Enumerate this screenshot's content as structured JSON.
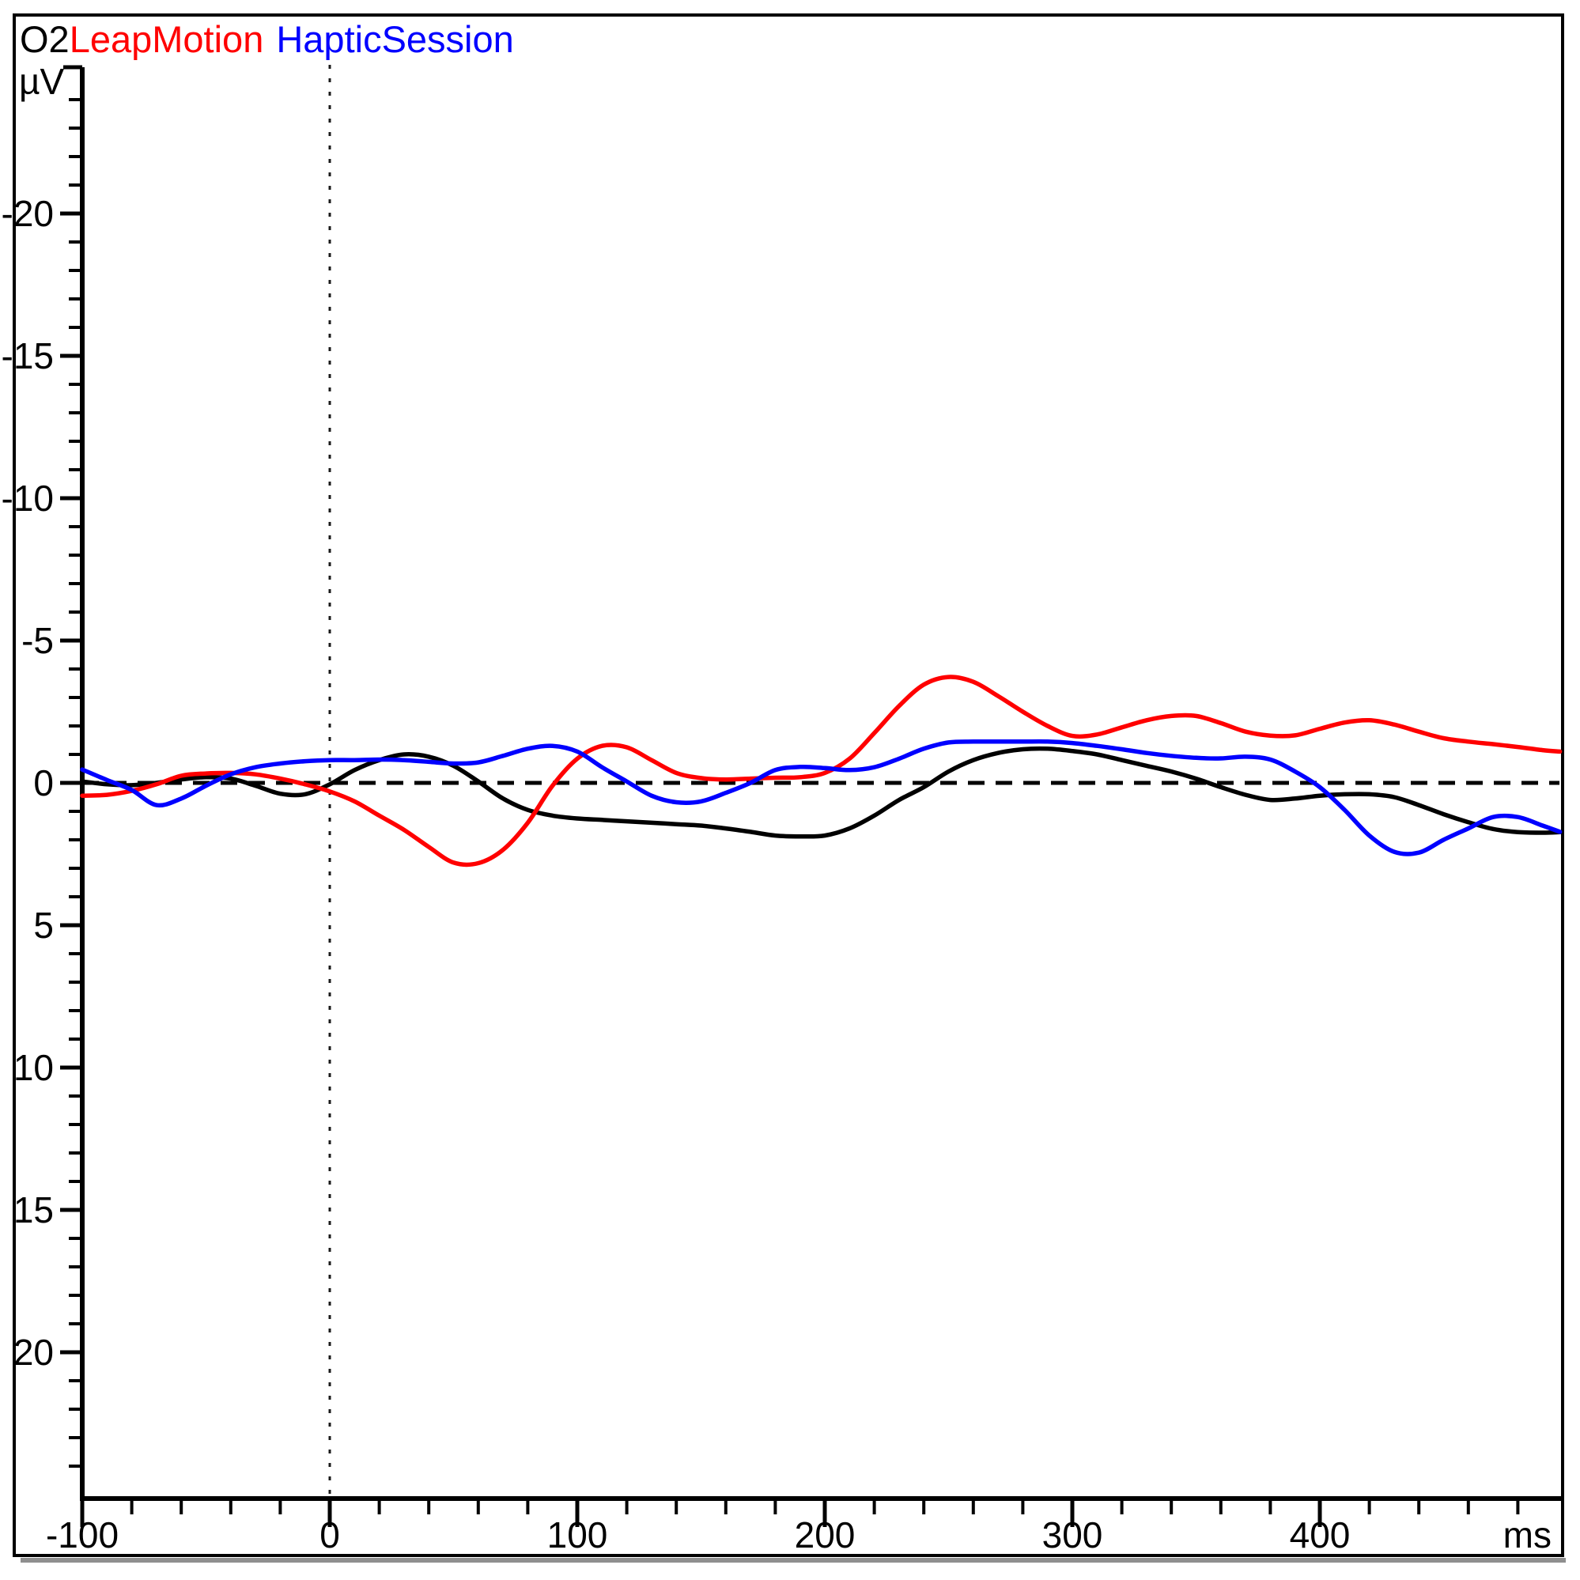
{
  "window": {
    "background": "#ffffff",
    "frame_border_color": "#000000",
    "frame_shadow_color": "#8f8f8f"
  },
  "header": {
    "channel_label": "O2",
    "legend": [
      {
        "label": "LeapMotion",
        "color": "#ff0000"
      },
      {
        "label": "HapticSession",
        "color": "#0000ff"
      }
    ]
  },
  "chart_data": {
    "type": "line",
    "title": "O2",
    "xlabel": "ms",
    "ylabel": "µV",
    "x_ticks": [
      -100,
      0,
      100,
      200,
      300,
      400
    ],
    "y_ticks": [
      -20,
      -15,
      -10,
      -5,
      0,
      5,
      10,
      15,
      20
    ],
    "xlim": [
      -100,
      500
    ],
    "ylim": [
      -25,
      25
    ],
    "y_axis_negative_up": true,
    "x_minor_step_ms": 20,
    "y_minor_step_uv": 1,
    "grid": "off",
    "legend_position": "top-left",
    "zero_lines": {
      "horizontal_at_uv": 0,
      "horizontal_style": "dashed",
      "vertical_at_ms": 0,
      "vertical_style": "dotted"
    },
    "axis_color": "#000000",
    "series": [
      {
        "name": "O2",
        "color": "#000000",
        "points": [
          [
            -100,
            -0.05
          ],
          [
            -90,
            0.05
          ],
          [
            -80,
            0.08
          ],
          [
            -70,
            0.0
          ],
          [
            -60,
            -0.12
          ],
          [
            -50,
            -0.2
          ],
          [
            -40,
            -0.15
          ],
          [
            -30,
            0.1
          ],
          [
            -20,
            0.38
          ],
          [
            -10,
            0.4
          ],
          [
            0,
            0.05
          ],
          [
            10,
            -0.45
          ],
          [
            20,
            -0.8
          ],
          [
            30,
            -1.0
          ],
          [
            40,
            -0.92
          ],
          [
            50,
            -0.6
          ],
          [
            60,
            -0.05
          ],
          [
            70,
            0.55
          ],
          [
            80,
            0.95
          ],
          [
            90,
            1.15
          ],
          [
            100,
            1.25
          ],
          [
            110,
            1.3
          ],
          [
            120,
            1.35
          ],
          [
            130,
            1.4
          ],
          [
            140,
            1.45
          ],
          [
            150,
            1.5
          ],
          [
            160,
            1.6
          ],
          [
            170,
            1.72
          ],
          [
            180,
            1.85
          ],
          [
            190,
            1.88
          ],
          [
            200,
            1.85
          ],
          [
            210,
            1.6
          ],
          [
            220,
            1.15
          ],
          [
            230,
            0.6
          ],
          [
            240,
            0.15
          ],
          [
            250,
            -0.4
          ],
          [
            260,
            -0.8
          ],
          [
            270,
            -1.05
          ],
          [
            280,
            -1.18
          ],
          [
            290,
            -1.2
          ],
          [
            300,
            -1.12
          ],
          [
            310,
            -1.0
          ],
          [
            320,
            -0.8
          ],
          [
            330,
            -0.6
          ],
          [
            340,
            -0.4
          ],
          [
            350,
            -0.15
          ],
          [
            360,
            0.15
          ],
          [
            370,
            0.42
          ],
          [
            380,
            0.6
          ],
          [
            390,
            0.55
          ],
          [
            400,
            0.45
          ],
          [
            410,
            0.4
          ],
          [
            420,
            0.4
          ],
          [
            430,
            0.5
          ],
          [
            440,
            0.78
          ],
          [
            450,
            1.1
          ],
          [
            460,
            1.38
          ],
          [
            470,
            1.62
          ],
          [
            480,
            1.73
          ],
          [
            490,
            1.75
          ],
          [
            497,
            1.73
          ]
        ]
      },
      {
        "name": "LeapMotion",
        "color": "#ff0000",
        "points": [
          [
            -100,
            0.45
          ],
          [
            -90,
            0.42
          ],
          [
            -80,
            0.28
          ],
          [
            -70,
            0.05
          ],
          [
            -60,
            -0.25
          ],
          [
            -50,
            -0.33
          ],
          [
            -40,
            -0.35
          ],
          [
            -30,
            -0.3
          ],
          [
            -20,
            -0.15
          ],
          [
            -10,
            0.05
          ],
          [
            0,
            0.3
          ],
          [
            10,
            0.65
          ],
          [
            20,
            1.15
          ],
          [
            30,
            1.65
          ],
          [
            40,
            2.25
          ],
          [
            50,
            2.8
          ],
          [
            60,
            2.82
          ],
          [
            70,
            2.35
          ],
          [
            80,
            1.4
          ],
          [
            90,
            0.1
          ],
          [
            100,
            -0.85
          ],
          [
            110,
            -1.3
          ],
          [
            120,
            -1.25
          ],
          [
            130,
            -0.8
          ],
          [
            140,
            -0.35
          ],
          [
            150,
            -0.17
          ],
          [
            160,
            -0.12
          ],
          [
            170,
            -0.15
          ],
          [
            180,
            -0.18
          ],
          [
            190,
            -0.2
          ],
          [
            200,
            -0.35
          ],
          [
            210,
            -0.85
          ],
          [
            220,
            -1.75
          ],
          [
            230,
            -2.7
          ],
          [
            240,
            -3.45
          ],
          [
            250,
            -3.72
          ],
          [
            260,
            -3.55
          ],
          [
            270,
            -3.05
          ],
          [
            280,
            -2.5
          ],
          [
            290,
            -2.0
          ],
          [
            300,
            -1.65
          ],
          [
            310,
            -1.7
          ],
          [
            320,
            -1.95
          ],
          [
            330,
            -2.2
          ],
          [
            340,
            -2.35
          ],
          [
            350,
            -2.35
          ],
          [
            360,
            -2.1
          ],
          [
            370,
            -1.8
          ],
          [
            380,
            -1.66
          ],
          [
            390,
            -1.67
          ],
          [
            400,
            -1.9
          ],
          [
            410,
            -2.12
          ],
          [
            420,
            -2.2
          ],
          [
            430,
            -2.05
          ],
          [
            440,
            -1.8
          ],
          [
            450,
            -1.57
          ],
          [
            460,
            -1.45
          ],
          [
            470,
            -1.36
          ],
          [
            480,
            -1.26
          ],
          [
            490,
            -1.15
          ],
          [
            497,
            -1.1
          ]
        ]
      },
      {
        "name": "HapticSession",
        "color": "#0000ff",
        "points": [
          [
            -100,
            -0.47
          ],
          [
            -90,
            -0.1
          ],
          [
            -80,
            0.25
          ],
          [
            -70,
            0.78
          ],
          [
            -60,
            0.55
          ],
          [
            -50,
            0.1
          ],
          [
            -40,
            -0.3
          ],
          [
            -30,
            -0.55
          ],
          [
            -20,
            -0.68
          ],
          [
            -10,
            -0.76
          ],
          [
            0,
            -0.8
          ],
          [
            10,
            -0.8
          ],
          [
            20,
            -0.82
          ],
          [
            30,
            -0.8
          ],
          [
            40,
            -0.74
          ],
          [
            50,
            -0.68
          ],
          [
            60,
            -0.72
          ],
          [
            70,
            -0.95
          ],
          [
            80,
            -1.2
          ],
          [
            90,
            -1.3
          ],
          [
            100,
            -1.1
          ],
          [
            110,
            -0.55
          ],
          [
            120,
            -0.05
          ],
          [
            130,
            0.45
          ],
          [
            140,
            0.68
          ],
          [
            150,
            0.65
          ],
          [
            160,
            0.35
          ],
          [
            170,
            0.0
          ],
          [
            180,
            -0.45
          ],
          [
            190,
            -0.56
          ],
          [
            200,
            -0.52
          ],
          [
            210,
            -0.45
          ],
          [
            220,
            -0.55
          ],
          [
            230,
            -0.85
          ],
          [
            240,
            -1.2
          ],
          [
            250,
            -1.42
          ],
          [
            260,
            -1.45
          ],
          [
            270,
            -1.45
          ],
          [
            280,
            -1.45
          ],
          [
            290,
            -1.45
          ],
          [
            300,
            -1.4
          ],
          [
            310,
            -1.3
          ],
          [
            320,
            -1.18
          ],
          [
            330,
            -1.05
          ],
          [
            340,
            -0.95
          ],
          [
            350,
            -0.88
          ],
          [
            360,
            -0.86
          ],
          [
            370,
            -0.92
          ],
          [
            380,
            -0.82
          ],
          [
            390,
            -0.4
          ],
          [
            400,
            0.15
          ],
          [
            410,
            0.95
          ],
          [
            420,
            1.85
          ],
          [
            430,
            2.42
          ],
          [
            440,
            2.45
          ],
          [
            450,
            2.0
          ],
          [
            460,
            1.6
          ],
          [
            470,
            1.2
          ],
          [
            480,
            1.2
          ],
          [
            490,
            1.5
          ],
          [
            497,
            1.72
          ]
        ]
      }
    ]
  }
}
